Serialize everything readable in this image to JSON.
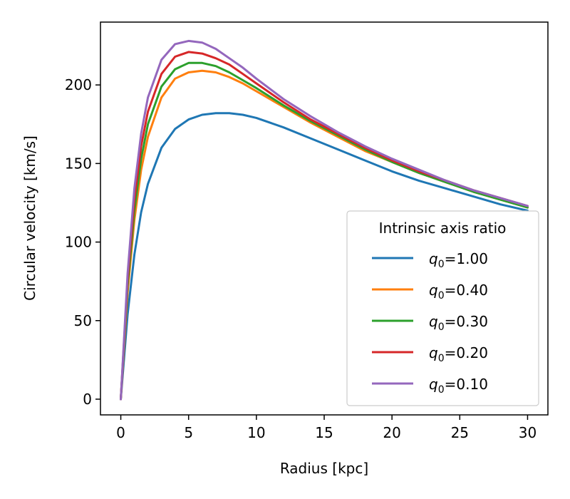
{
  "chart_data": {
    "type": "line",
    "title": "",
    "xlabel": "Radius [kpc]",
    "ylabel": "Circular velocity [km/s]",
    "xlim": [
      -1.5,
      31.5
    ],
    "ylim": [
      -10,
      240
    ],
    "xticks": [
      0,
      5,
      10,
      15,
      20,
      25,
      30
    ],
    "yticks": [
      0,
      50,
      100,
      150,
      200
    ],
    "grid": false,
    "legend": {
      "title": "Intrinsic axis ratio",
      "placement": "lower right"
    },
    "x": [
      0,
      0.5,
      1,
      1.5,
      2,
      3,
      4,
      5,
      6,
      7,
      8,
      9,
      10,
      12,
      14,
      16,
      18,
      20,
      22,
      24,
      26,
      28,
      30
    ],
    "series": [
      {
        "name": "q0=1.00",
        "q_sub": "0",
        "q_value": "1.00",
        "color": "#1f77b4",
        "values": [
          0,
          54,
          92,
          119,
          137,
          160,
          172,
          178,
          181,
          182,
          182,
          181,
          179,
          173,
          166,
          159,
          152,
          145,
          139,
          134,
          129,
          124,
          120
        ]
      },
      {
        "name": "q0=0.40",
        "q_sub": "0",
        "q_value": "0.40",
        "color": "#ff7f0e",
        "values": [
          0,
          68,
          114,
          146,
          167,
          192,
          204,
          208,
          209,
          208,
          205,
          201,
          196,
          186,
          176,
          167,
          158,
          151,
          144,
          138,
          132,
          127,
          122
        ]
      },
      {
        "name": "q0=0.30",
        "q_sub": "0",
        "q_value": "0.30",
        "color": "#2ca02c",
        "values": [
          0,
          72,
          120,
          153,
          175,
          199,
          210,
          214,
          214,
          212,
          208,
          203,
          198,
          187,
          177,
          168,
          159,
          151,
          144,
          138,
          132,
          127,
          122
        ]
      },
      {
        "name": "q0=0.20",
        "q_sub": "0",
        "q_value": "0.20",
        "color": "#d62728",
        "values": [
          0,
          76,
          127,
          161,
          183,
          207,
          218,
          221,
          220,
          217,
          213,
          207,
          201,
          189,
          178,
          169,
          160,
          152,
          145,
          139,
          133,
          128,
          123
        ]
      },
      {
        "name": "q0=0.10",
        "q_sub": "0",
        "q_value": "0.10",
        "color": "#9467bd",
        "values": [
          0,
          80,
          134,
          169,
          192,
          216,
          226,
          228,
          227,
          223,
          217,
          211,
          204,
          191,
          180,
          170,
          161,
          153,
          146,
          139,
          133,
          128,
          123
        ]
      }
    ]
  }
}
